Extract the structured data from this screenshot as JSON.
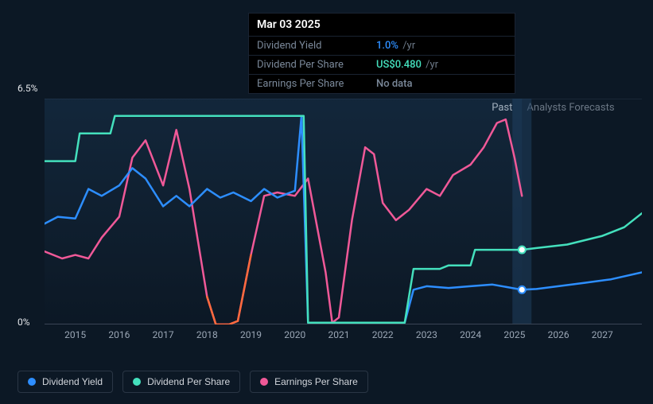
{
  "tooltip": {
    "date": "Mar 03 2025",
    "rows": [
      {
        "label": "Dividend Yield",
        "value": "1.0%",
        "value_color": "#2d8eff",
        "suffix": "/yr"
      },
      {
        "label": "Dividend Per Share",
        "value": "US$0.480",
        "value_color": "#44e0bd",
        "suffix": "/yr"
      },
      {
        "label": "Earnings Per Share",
        "value": "No data",
        "value_color": "#7a8899",
        "suffix": ""
      }
    ]
  },
  "y_axis": {
    "min_label": "0%",
    "max_label": "6.5%",
    "min": 0,
    "max": 6.5
  },
  "x_axis": {
    "min": 2014.3,
    "max": 2027.9,
    "ticks": [
      2015,
      2016,
      2017,
      2018,
      2019,
      2020,
      2021,
      2022,
      2023,
      2024,
      2025,
      2026,
      2027
    ]
  },
  "section_labels": {
    "past": "Past",
    "forecast": "Analysts Forecasts"
  },
  "past_forecast_split": 2025.17,
  "hover_x": 2025.17,
  "chart": {
    "background": "#0c1825",
    "gradient_top": "#1f4263",
    "gradient_top_opacity": 0.35,
    "baseline_color": "#3a4555",
    "grid_color": "#1a2736",
    "line_width": 2.5,
    "marker_radius": 4.5
  },
  "legend": [
    {
      "name": "Dividend Yield",
      "color": "#2d8eff"
    },
    {
      "name": "Dividend Per Share",
      "color": "#44e0bd"
    },
    {
      "name": "Earnings Per Share",
      "color": "#f05998"
    }
  ],
  "series": {
    "dividend_yield": {
      "color": "#2d8eff",
      "points": [
        [
          2014.3,
          2.9
        ],
        [
          2014.6,
          3.1
        ],
        [
          2015.0,
          3.05
        ],
        [
          2015.3,
          3.9
        ],
        [
          2015.6,
          3.7
        ],
        [
          2016.0,
          4.0
        ],
        [
          2016.3,
          4.5
        ],
        [
          2016.6,
          4.2
        ],
        [
          2017.0,
          3.4
        ],
        [
          2017.3,
          3.7
        ],
        [
          2017.6,
          3.4
        ],
        [
          2018.0,
          3.9
        ],
        [
          2018.3,
          3.65
        ],
        [
          2018.6,
          3.8
        ],
        [
          2019.0,
          3.55
        ],
        [
          2019.3,
          3.9
        ],
        [
          2019.6,
          3.65
        ],
        [
          2020.0,
          3.85
        ],
        [
          2020.15,
          6.0
        ],
        [
          2020.3,
          0.05
        ],
        [
          2021.0,
          0.05
        ],
        [
          2022.0,
          0.05
        ],
        [
          2022.5,
          0.05
        ],
        [
          2022.7,
          1.0
        ],
        [
          2023.0,
          1.1
        ],
        [
          2023.5,
          1.05
        ],
        [
          2024.0,
          1.1
        ],
        [
          2024.5,
          1.15
        ],
        [
          2025.17,
          1.0
        ],
        [
          2025.5,
          1.02
        ],
        [
          2026.0,
          1.1
        ],
        [
          2026.6,
          1.2
        ],
        [
          2027.2,
          1.3
        ],
        [
          2027.9,
          1.5
        ]
      ],
      "marker_at": 2025.17,
      "marker_y": 1.0
    },
    "dividend_per_share": {
      "color": "#44e0bd",
      "points": [
        [
          2014.3,
          4.7
        ],
        [
          2015.0,
          4.7
        ],
        [
          2015.1,
          5.5
        ],
        [
          2015.8,
          5.5
        ],
        [
          2015.9,
          6.0
        ],
        [
          2020.2,
          6.0
        ],
        [
          2020.3,
          0.05
        ],
        [
          2022.5,
          0.05
        ],
        [
          2022.7,
          1.6
        ],
        [
          2023.3,
          1.6
        ],
        [
          2023.5,
          1.7
        ],
        [
          2024.0,
          1.7
        ],
        [
          2024.1,
          2.15
        ],
        [
          2025.17,
          2.15
        ],
        [
          2025.5,
          2.2
        ],
        [
          2026.2,
          2.3
        ],
        [
          2027.0,
          2.55
        ],
        [
          2027.5,
          2.8
        ],
        [
          2027.9,
          3.2
        ]
      ],
      "marker_at": 2025.17,
      "marker_y": 2.15
    },
    "earnings_per_share": {
      "color": "#f05998",
      "neg_color": "#ff6a3d",
      "points": [
        [
          2014.3,
          2.1
        ],
        [
          2014.7,
          1.9
        ],
        [
          2015.0,
          2.0
        ],
        [
          2015.3,
          1.9
        ],
        [
          2015.6,
          2.5
        ],
        [
          2016.0,
          3.1
        ],
        [
          2016.3,
          4.8
        ],
        [
          2016.6,
          5.3
        ],
        [
          2017.0,
          4.0
        ],
        [
          2017.3,
          5.6
        ],
        [
          2017.6,
          3.9
        ],
        [
          2018.0,
          0.8
        ],
        [
          2018.2,
          0.0
        ],
        [
          2018.5,
          0.0
        ],
        [
          2018.7,
          0.1
        ],
        [
          2019.0,
          2.0
        ],
        [
          2019.3,
          3.7
        ],
        [
          2019.6,
          3.8
        ],
        [
          2020.0,
          3.7
        ],
        [
          2020.3,
          4.2
        ],
        [
          2020.7,
          1.5
        ],
        [
          2020.85,
          0.05
        ],
        [
          2021.0,
          0.2
        ],
        [
          2021.3,
          3.0
        ],
        [
          2021.6,
          5.1
        ],
        [
          2021.8,
          4.9
        ],
        [
          2022.0,
          3.5
        ],
        [
          2022.3,
          3.0
        ],
        [
          2022.6,
          3.3
        ],
        [
          2023.0,
          3.9
        ],
        [
          2023.3,
          3.7
        ],
        [
          2023.6,
          4.3
        ],
        [
          2024.0,
          4.6
        ],
        [
          2024.3,
          5.1
        ],
        [
          2024.6,
          5.8
        ],
        [
          2024.8,
          5.9
        ],
        [
          2025.0,
          4.8
        ],
        [
          2025.17,
          3.7
        ]
      ]
    }
  }
}
